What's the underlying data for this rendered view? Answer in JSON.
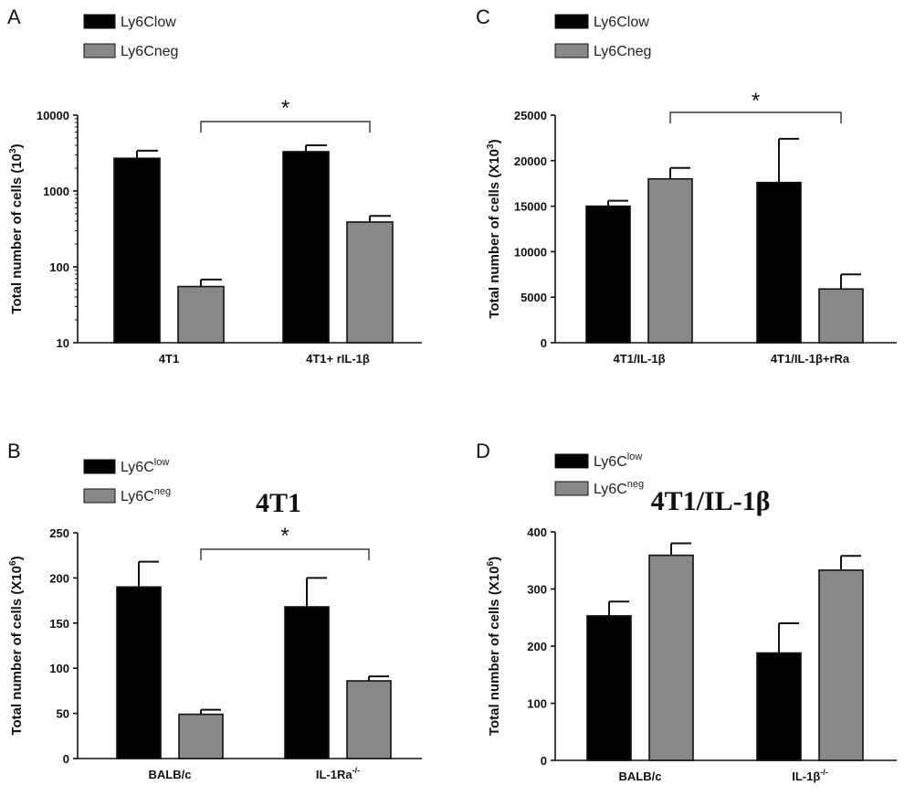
{
  "chart_data": [
    {
      "panel": "A",
      "type": "bar",
      "title": "",
      "ylabel": "Total number of cells (10",
      "ylabel_sup": "3",
      "ylabel_close": ")",
      "yscale": "log",
      "ylim": [
        10,
        10000
      ],
      "yticks": [
        "10",
        "100",
        "1000",
        "10000"
      ],
      "categories": [
        {
          "label": "4T1",
          "sup": ""
        },
        {
          "label": "4T1+ rIL-1β",
          "sup": ""
        }
      ],
      "legend": [
        {
          "name": "Ly6Clow",
          "sup": "",
          "color": "#000000"
        },
        {
          "name": "Ly6Cneg",
          "sup": "",
          "color": "#888888"
        }
      ],
      "series": [
        {
          "name": "Ly6Clow",
          "values": [
            2700,
            3300
          ],
          "errors": [
            3400,
            4000
          ]
        },
        {
          "name": "Ly6Cneg",
          "values": [
            55,
            390
          ],
          "errors": [
            68,
            470
          ]
        }
      ],
      "significance": {
        "label": "*",
        "from": [
          0,
          1
        ],
        "to": [
          1,
          1
        ]
      }
    },
    {
      "panel": "C",
      "type": "bar",
      "title": "",
      "ylabel": "Total number of cells (X10",
      "ylabel_sup": "3",
      "ylabel_close": ")",
      "yscale": "linear",
      "ylim": [
        0,
        25000
      ],
      "yticks": [
        "0",
        "5000",
        "10000",
        "15000",
        "20000",
        "25000"
      ],
      "categories": [
        {
          "label": "4T1/IL-1β",
          "sup": ""
        },
        {
          "label": "4T1/IL-1β+rRa",
          "sup": ""
        }
      ],
      "legend": [
        {
          "name": "Ly6Clow",
          "sup": "",
          "color": "#000000"
        },
        {
          "name": "Ly6Cneg",
          "sup": "",
          "color": "#888888"
        }
      ],
      "series": [
        {
          "name": "Ly6Clow",
          "values": [
            15000,
            17600
          ],
          "errors": [
            15600,
            22400
          ]
        },
        {
          "name": "Ly6Cneg",
          "values": [
            18000,
            5900
          ],
          "errors": [
            19200,
            7500
          ]
        }
      ],
      "significance": {
        "label": "*",
        "from": [
          0,
          1
        ],
        "to": [
          1,
          1
        ]
      }
    },
    {
      "panel": "B",
      "type": "bar",
      "title": "4T1",
      "ylabel": "Total number of cells (X10",
      "ylabel_sup": "6",
      "ylabel_close": ")",
      "yscale": "linear",
      "ylim": [
        0,
        250
      ],
      "yticks": [
        "0",
        "50",
        "100",
        "150",
        "200",
        "250"
      ],
      "categories": [
        {
          "label": "BALB/c",
          "sup": ""
        },
        {
          "label": "IL-1Ra",
          "sup": "-/-"
        }
      ],
      "legend": [
        {
          "name": "Ly6C",
          "sup": "low",
          "color": "#000000"
        },
        {
          "name": "Ly6C",
          "sup": "neg",
          "color": "#888888"
        }
      ],
      "series": [
        {
          "name": "Ly6Clow",
          "values": [
            190,
            168
          ],
          "errors": [
            218,
            200
          ]
        },
        {
          "name": "Ly6Cneg",
          "values": [
            49,
            86
          ],
          "errors": [
            54,
            91
          ]
        }
      ],
      "significance": {
        "label": "*",
        "from": [
          0,
          1
        ],
        "to": [
          1,
          1
        ]
      }
    },
    {
      "panel": "D",
      "type": "bar",
      "title": "4T1/IL-1β",
      "ylabel": "Total number of cells (X10",
      "ylabel_sup": "6",
      "ylabel_close": ")",
      "yscale": "linear",
      "ylim": [
        0,
        400
      ],
      "yticks": [
        "0",
        "100",
        "200",
        "300",
        "400"
      ],
      "categories": [
        {
          "label": "BALB/c",
          "sup": ""
        },
        {
          "label": "IL-1β",
          "sup": "-/-"
        }
      ],
      "legend": [
        {
          "name": "Ly6C",
          "sup": "low",
          "color": "#000000"
        },
        {
          "name": "Ly6C",
          "sup": "neg",
          "color": "#888888"
        }
      ],
      "series": [
        {
          "name": "Ly6Clow",
          "values": [
            253,
            188
          ],
          "errors": [
            278,
            240
          ]
        },
        {
          "name": "Ly6Cneg",
          "values": [
            359,
            333
          ],
          "errors": [
            380,
            358
          ]
        }
      ],
      "significance": null
    }
  ]
}
